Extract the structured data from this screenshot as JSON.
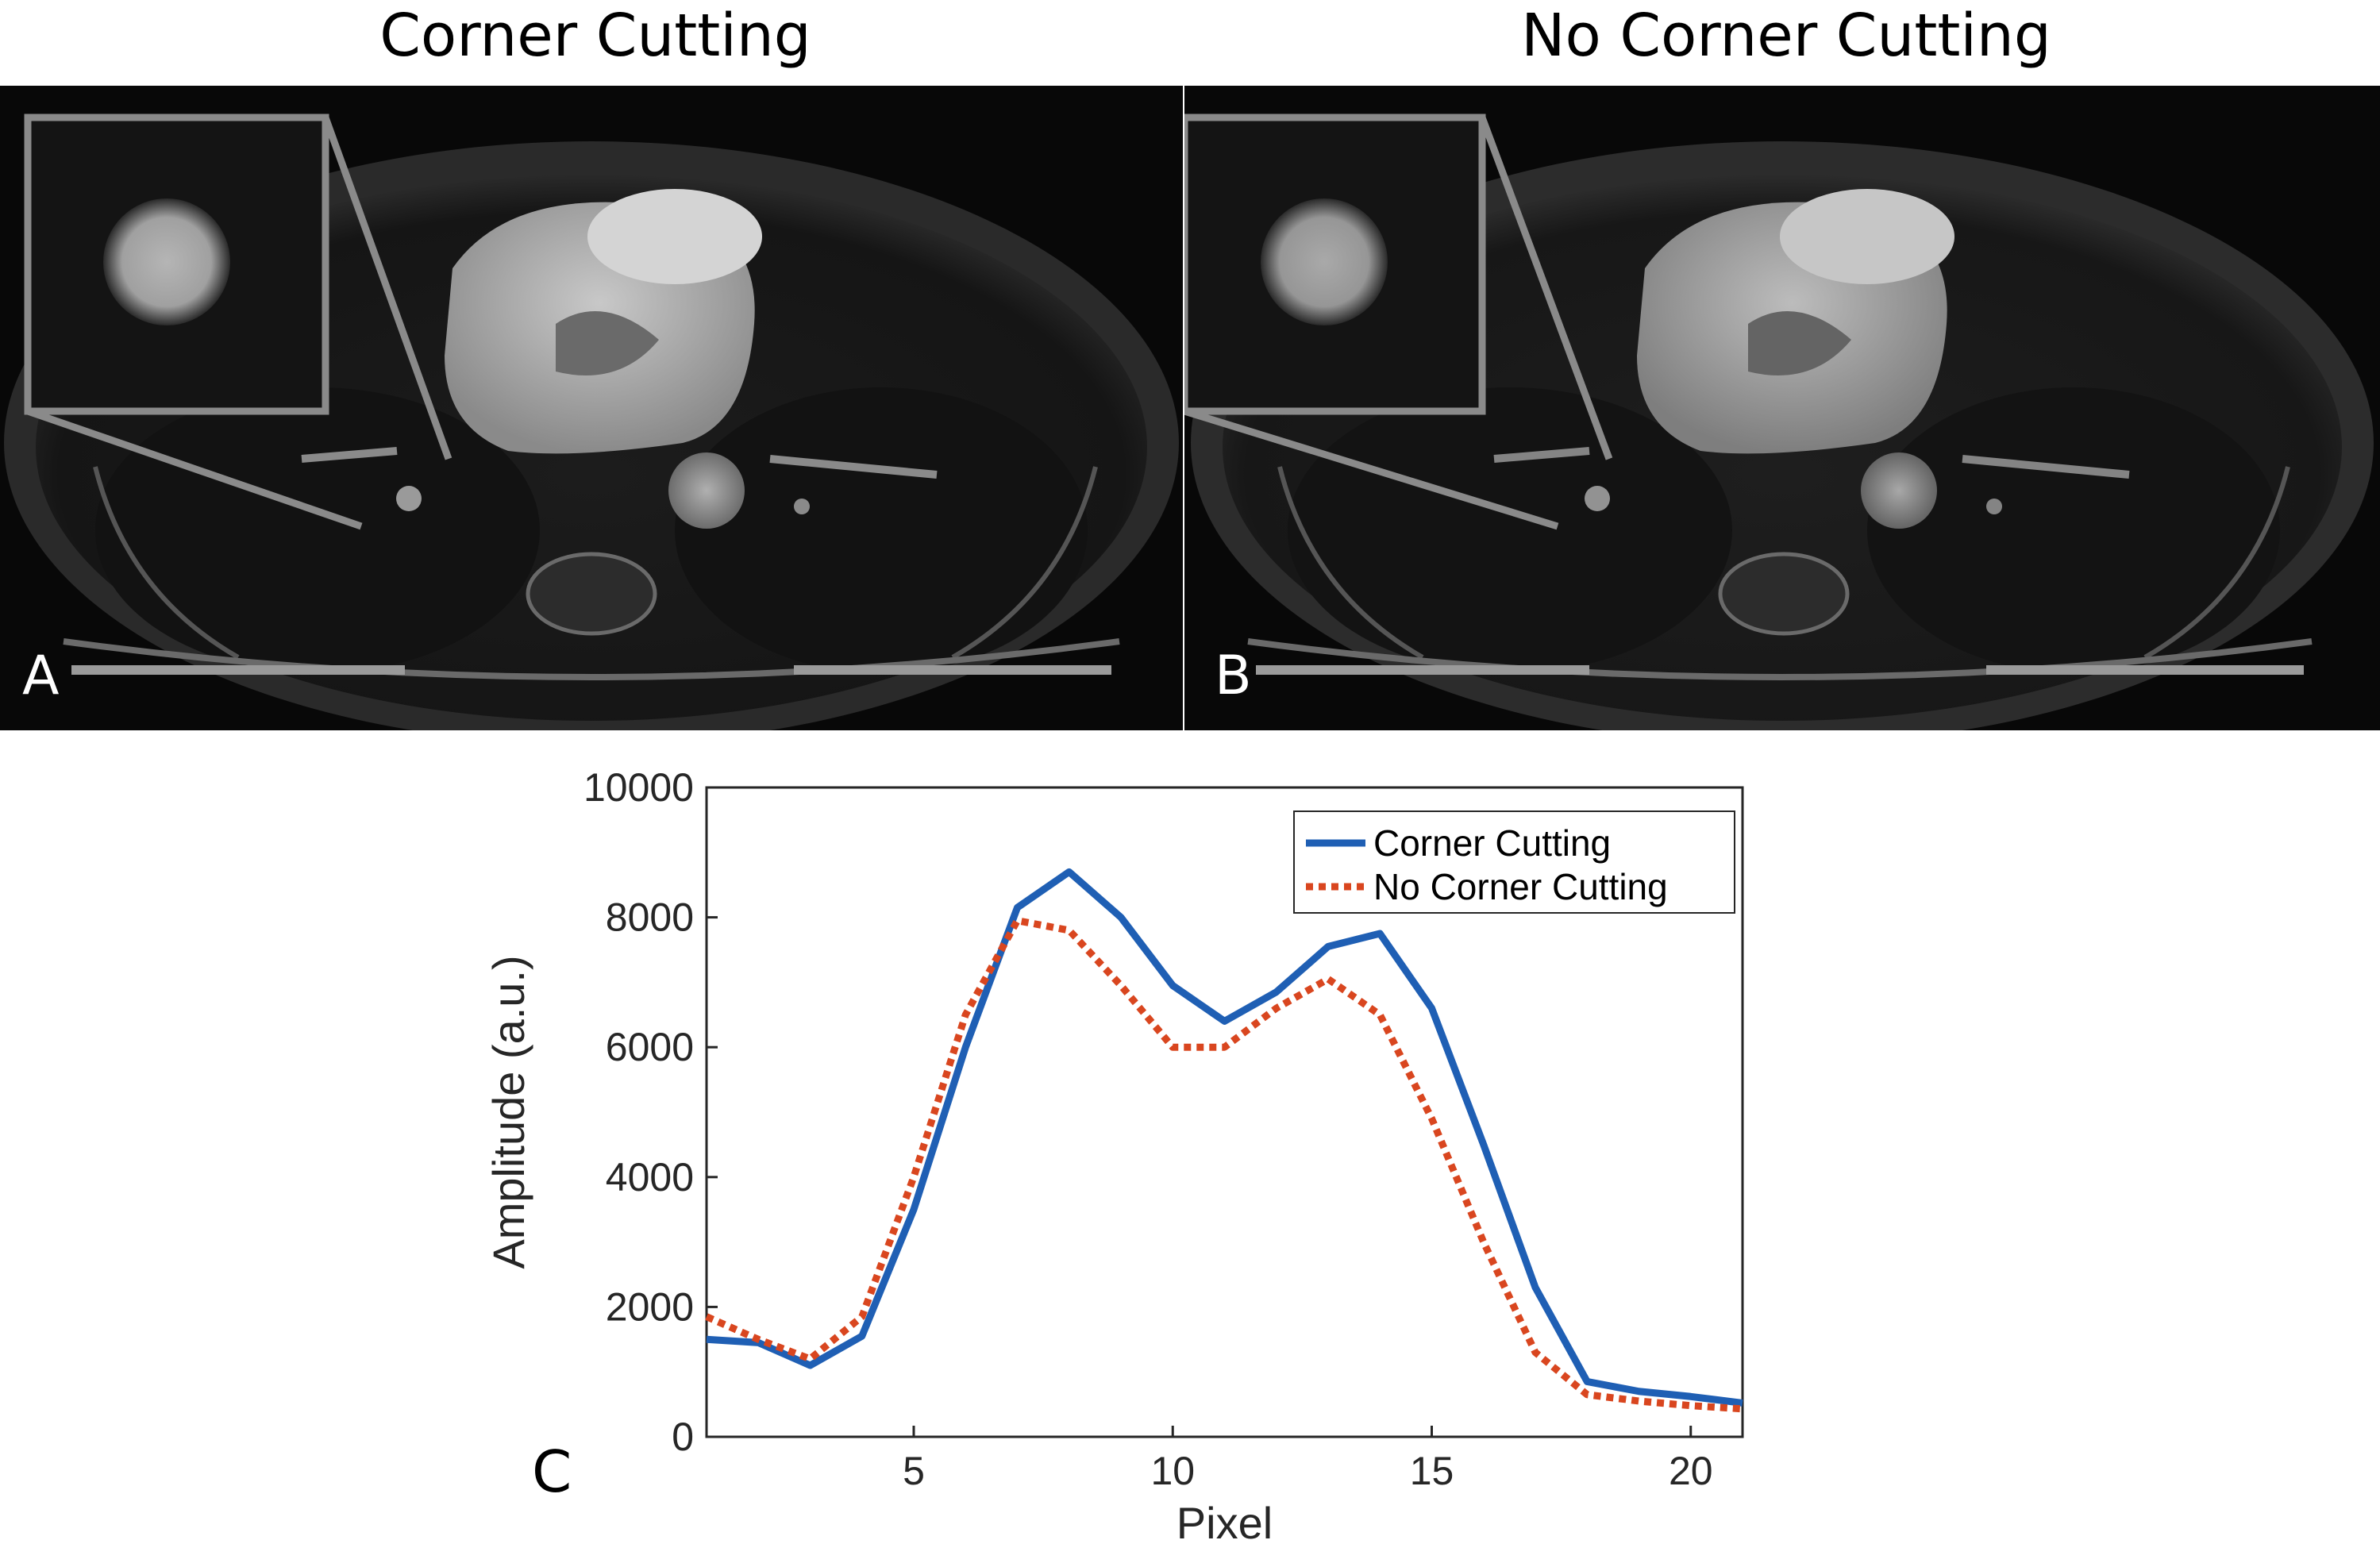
{
  "figure": {
    "panel_a_title": "Corner Cutting",
    "panel_b_title": "No Corner Cutting",
    "panel_a_letter": "A",
    "panel_b_letter": "B",
    "panel_c_letter": "C"
  },
  "colors": {
    "corner_cutting": "#1f5fb4",
    "no_corner_cutting": "#d9461f",
    "inset_frame": "#8a8a8a"
  },
  "chart_data": {
    "type": "line",
    "title": "",
    "xlabel": "Pixel",
    "ylabel": "Amplitude (a.u.)",
    "xlim": [
      1,
      21
    ],
    "ylim": [
      0,
      10000
    ],
    "xticks": [
      5,
      10,
      15,
      20
    ],
    "yticks": [
      0,
      2000,
      4000,
      6000,
      8000,
      10000
    ],
    "x": [
      1,
      2,
      3,
      4,
      5,
      6,
      7,
      8,
      9,
      10,
      11,
      12,
      13,
      14,
      15,
      16,
      17,
      18,
      19,
      20,
      21
    ],
    "series": [
      {
        "name": "Corner Cutting",
        "style": "solid",
        "values": [
          1500,
          1450,
          1100,
          1550,
          3500,
          6000,
          8150,
          8700,
          8000,
          6950,
          6400,
          6850,
          7550,
          7750,
          6600,
          4500,
          2300,
          850,
          700,
          620,
          520
        ]
      },
      {
        "name": "No Corner Cutting",
        "style": "dotted",
        "values": [
          1850,
          1500,
          1200,
          1850,
          4000,
          6500,
          7950,
          7800,
          6950,
          6000,
          6000,
          6600,
          7050,
          6500,
          4900,
          3000,
          1300,
          650,
          550,
          480,
          430
        ]
      }
    ],
    "legend_position": "top-right"
  }
}
